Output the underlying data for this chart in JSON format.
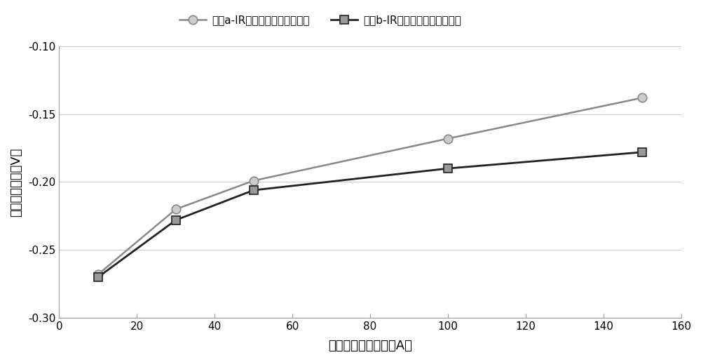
{
  "curve_a_x": [
    10,
    30,
    50,
    100,
    150
  ],
  "curve_a_y": [
    -0.268,
    -0.22,
    -0.199,
    -0.168,
    -0.138
  ],
  "curve_b_x": [
    10,
    30,
    50,
    100,
    150
  ],
  "curve_b_y": [
    -0.27,
    -0.228,
    -0.206,
    -0.19,
    -0.178
  ],
  "curve_a_label": "曲线a-IR降误差消除前测量结果",
  "curve_b_label": "曲线b-IR降误差消除后最终结果",
  "xlabel": "小模型接地极电流（A）",
  "ylabel": "试片极化电位（V）",
  "xlim": [
    0,
    160
  ],
  "ylim": [
    -0.3,
    -0.1
  ],
  "xticks": [
    0,
    20,
    40,
    60,
    80,
    100,
    120,
    140,
    160
  ],
  "yticks": [
    -0.3,
    -0.25,
    -0.2,
    -0.15,
    -0.1
  ],
  "color_a": "#888888",
  "color_b": "#222222",
  "marker_a_face": "#cccccc",
  "marker_b_face": "#999999",
  "bg_color": "#ffffff",
  "grid_color": "#cccccc",
  "spine_color": "#999999"
}
